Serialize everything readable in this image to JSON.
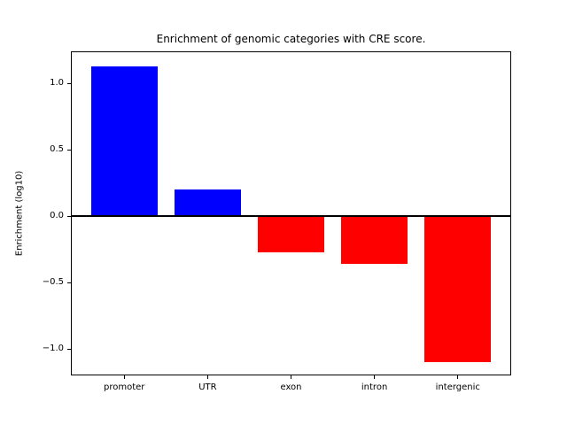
{
  "figure": {
    "background": "#ffffff"
  },
  "chart_data": {
    "type": "bar",
    "title": "Enrichment of genomic categories with CRE score.",
    "xlabel": "",
    "ylabel": "Enrichment (log10)",
    "categories": [
      "promoter",
      "UTR",
      "exon",
      "intron",
      "intergenic"
    ],
    "values": [
      1.13,
      0.2,
      -0.27,
      -0.36,
      -1.1
    ],
    "bar_colors": [
      "#0000ff",
      "#0000ff",
      "#ff0000",
      "#ff0000",
      "#ff0000"
    ],
    "positive_color": "#0000ff",
    "negative_color": "#ff0000",
    "bar_width_fraction": 0.8,
    "y_ticks": [
      {
        "value": 1.0,
        "label": "1.0"
      },
      {
        "value": 0.5,
        "label": "0.5"
      },
      {
        "value": 0.0,
        "label": "0.0"
      },
      {
        "value": -0.5,
        "label": "−0.5"
      },
      {
        "value": -1.0,
        "label": "−1.0"
      }
    ],
    "ylim": [
      -1.2,
      1.24
    ],
    "grid": false,
    "zero_line": true,
    "legend": null,
    "axis_color": "#000000",
    "plot_background": "#ffffff"
  }
}
